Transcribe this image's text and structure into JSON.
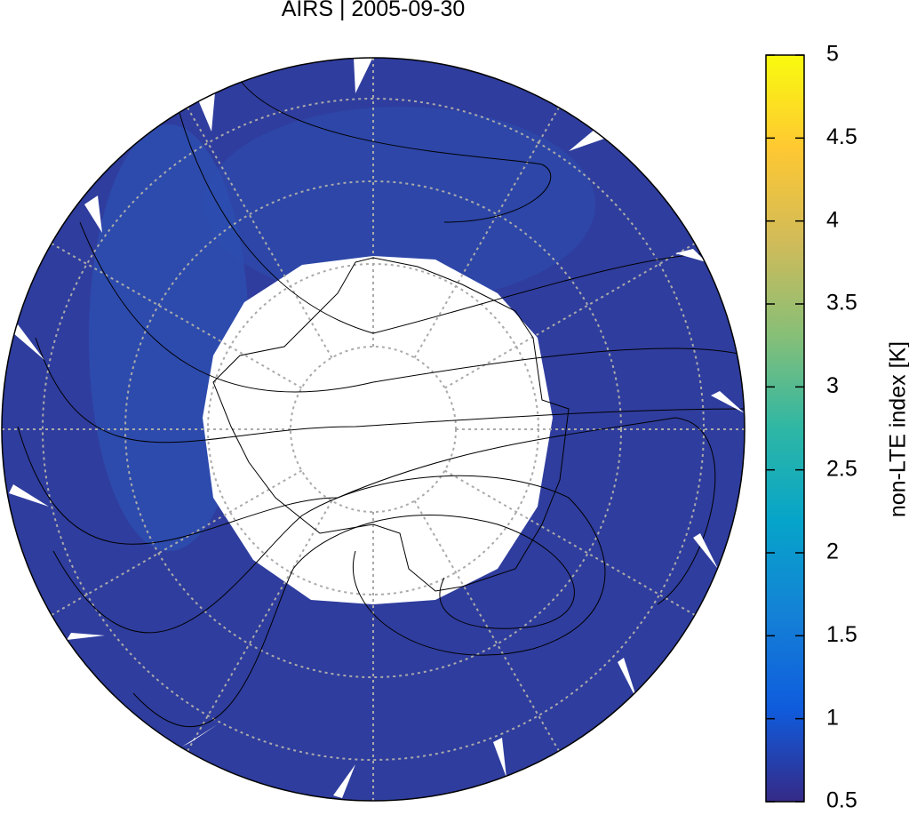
{
  "title": "AIRS | 2005-09-30",
  "colorbar": {
    "label": "non-LTE index [K]",
    "lim": [
      0.5,
      5
    ],
    "ticks": [
      0.5,
      1,
      1.5,
      2,
      2.5,
      3,
      3.5,
      4,
      4.5,
      5
    ],
    "colormap": [
      "#352a87",
      "#0f5cdd",
      "#1481d6",
      "#06a4ca",
      "#2eb7a4",
      "#87bf77",
      "#d1bb59",
      "#fec832",
      "#f9fb0e"
    ]
  }
}
